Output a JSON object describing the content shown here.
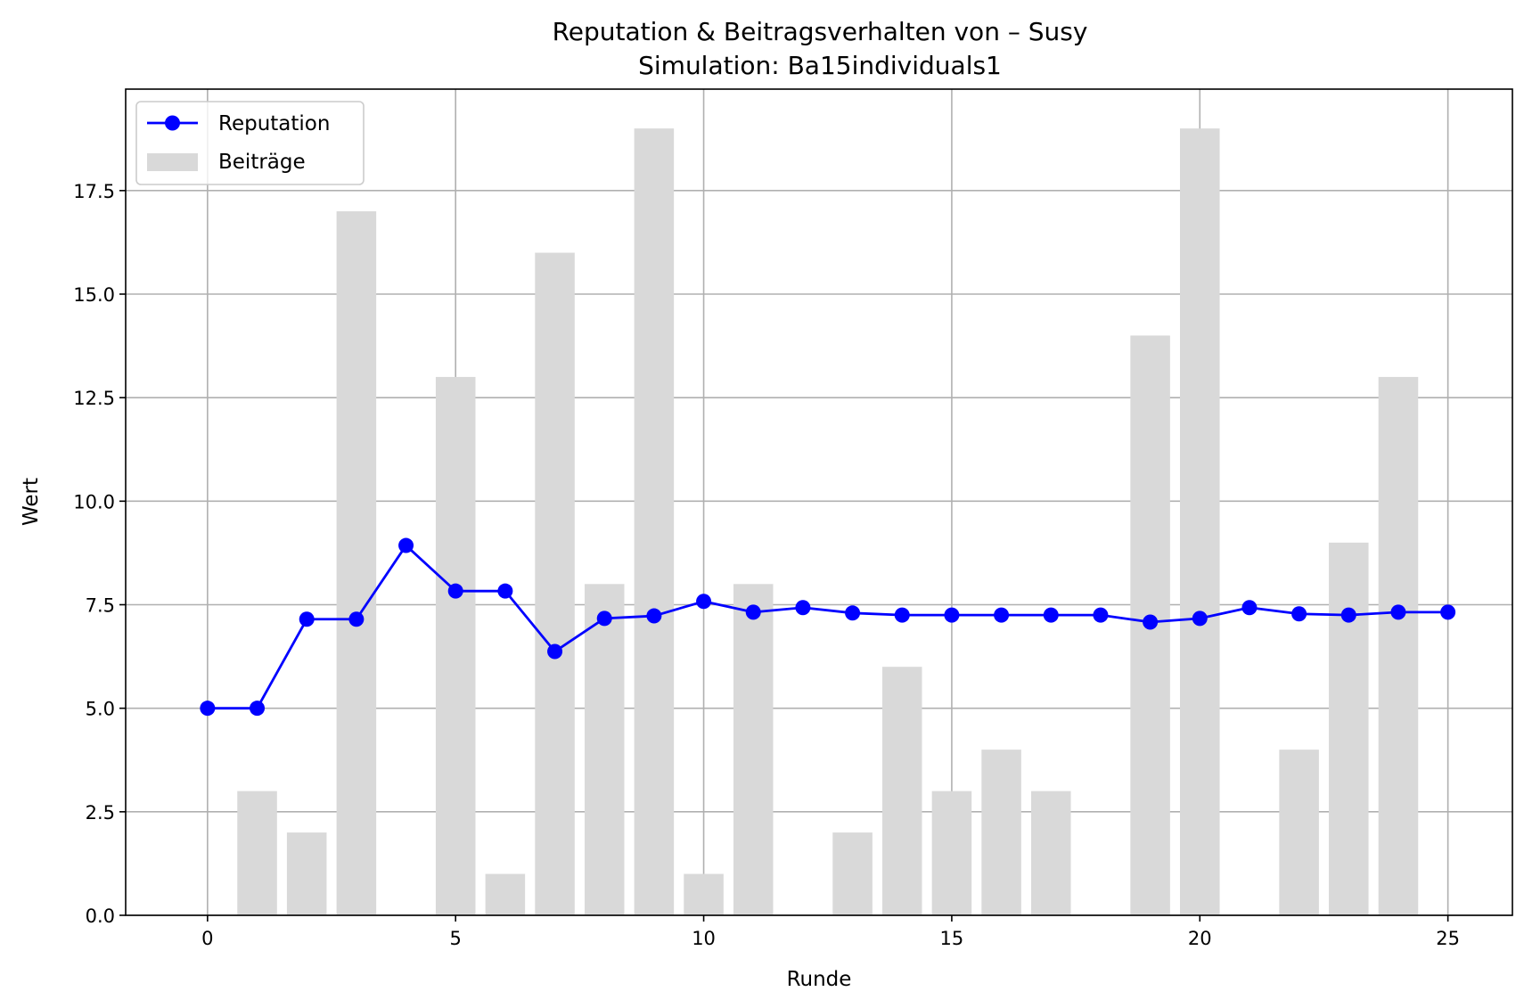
{
  "chart_data": {
    "type": "bar+line",
    "title": "Reputation & Beitragsverhalten von – Susy",
    "subtitle": "Simulation: Ba15individuals1",
    "xlabel": "Runde",
    "ylabel": "Wert",
    "xlim": [
      -1.65,
      26.3
    ],
    "ylim": [
      0,
      19.95
    ],
    "xticks": [
      0,
      5,
      10,
      15,
      20,
      25
    ],
    "yticks": [
      0.0,
      2.5,
      5.0,
      7.5,
      10.0,
      12.5,
      15.0,
      17.5
    ],
    "ytick_labels": [
      "0.0",
      "2.5",
      "5.0",
      "7.5",
      "10.0",
      "12.5",
      "15.0",
      "17.5"
    ],
    "grid": true,
    "legend_position": "top-left",
    "x": [
      0,
      1,
      2,
      3,
      4,
      5,
      6,
      7,
      8,
      9,
      10,
      11,
      12,
      13,
      14,
      15,
      16,
      17,
      18,
      19,
      20,
      21,
      22,
      23,
      24,
      25
    ],
    "series": [
      {
        "name": "Reputation",
        "kind": "line",
        "color": "#0000ff",
        "values": [
          5.0,
          5.0,
          7.15,
          7.15,
          8.93,
          7.83,
          7.83,
          6.37,
          7.17,
          7.23,
          7.58,
          7.32,
          7.43,
          7.3,
          7.25,
          7.25,
          7.25,
          7.25,
          7.25,
          7.08,
          7.17,
          7.43,
          7.28,
          7.25,
          7.32,
          7.32
        ]
      },
      {
        "name": "Beiträge",
        "kind": "bar",
        "color": "#d9d9d9",
        "values": [
          0,
          3,
          2,
          17,
          0,
          13,
          1,
          16,
          8,
          19,
          1,
          8,
          0,
          2,
          6,
          3,
          4,
          3,
          0,
          14,
          19,
          0,
          4,
          9,
          13,
          0
        ]
      }
    ]
  }
}
